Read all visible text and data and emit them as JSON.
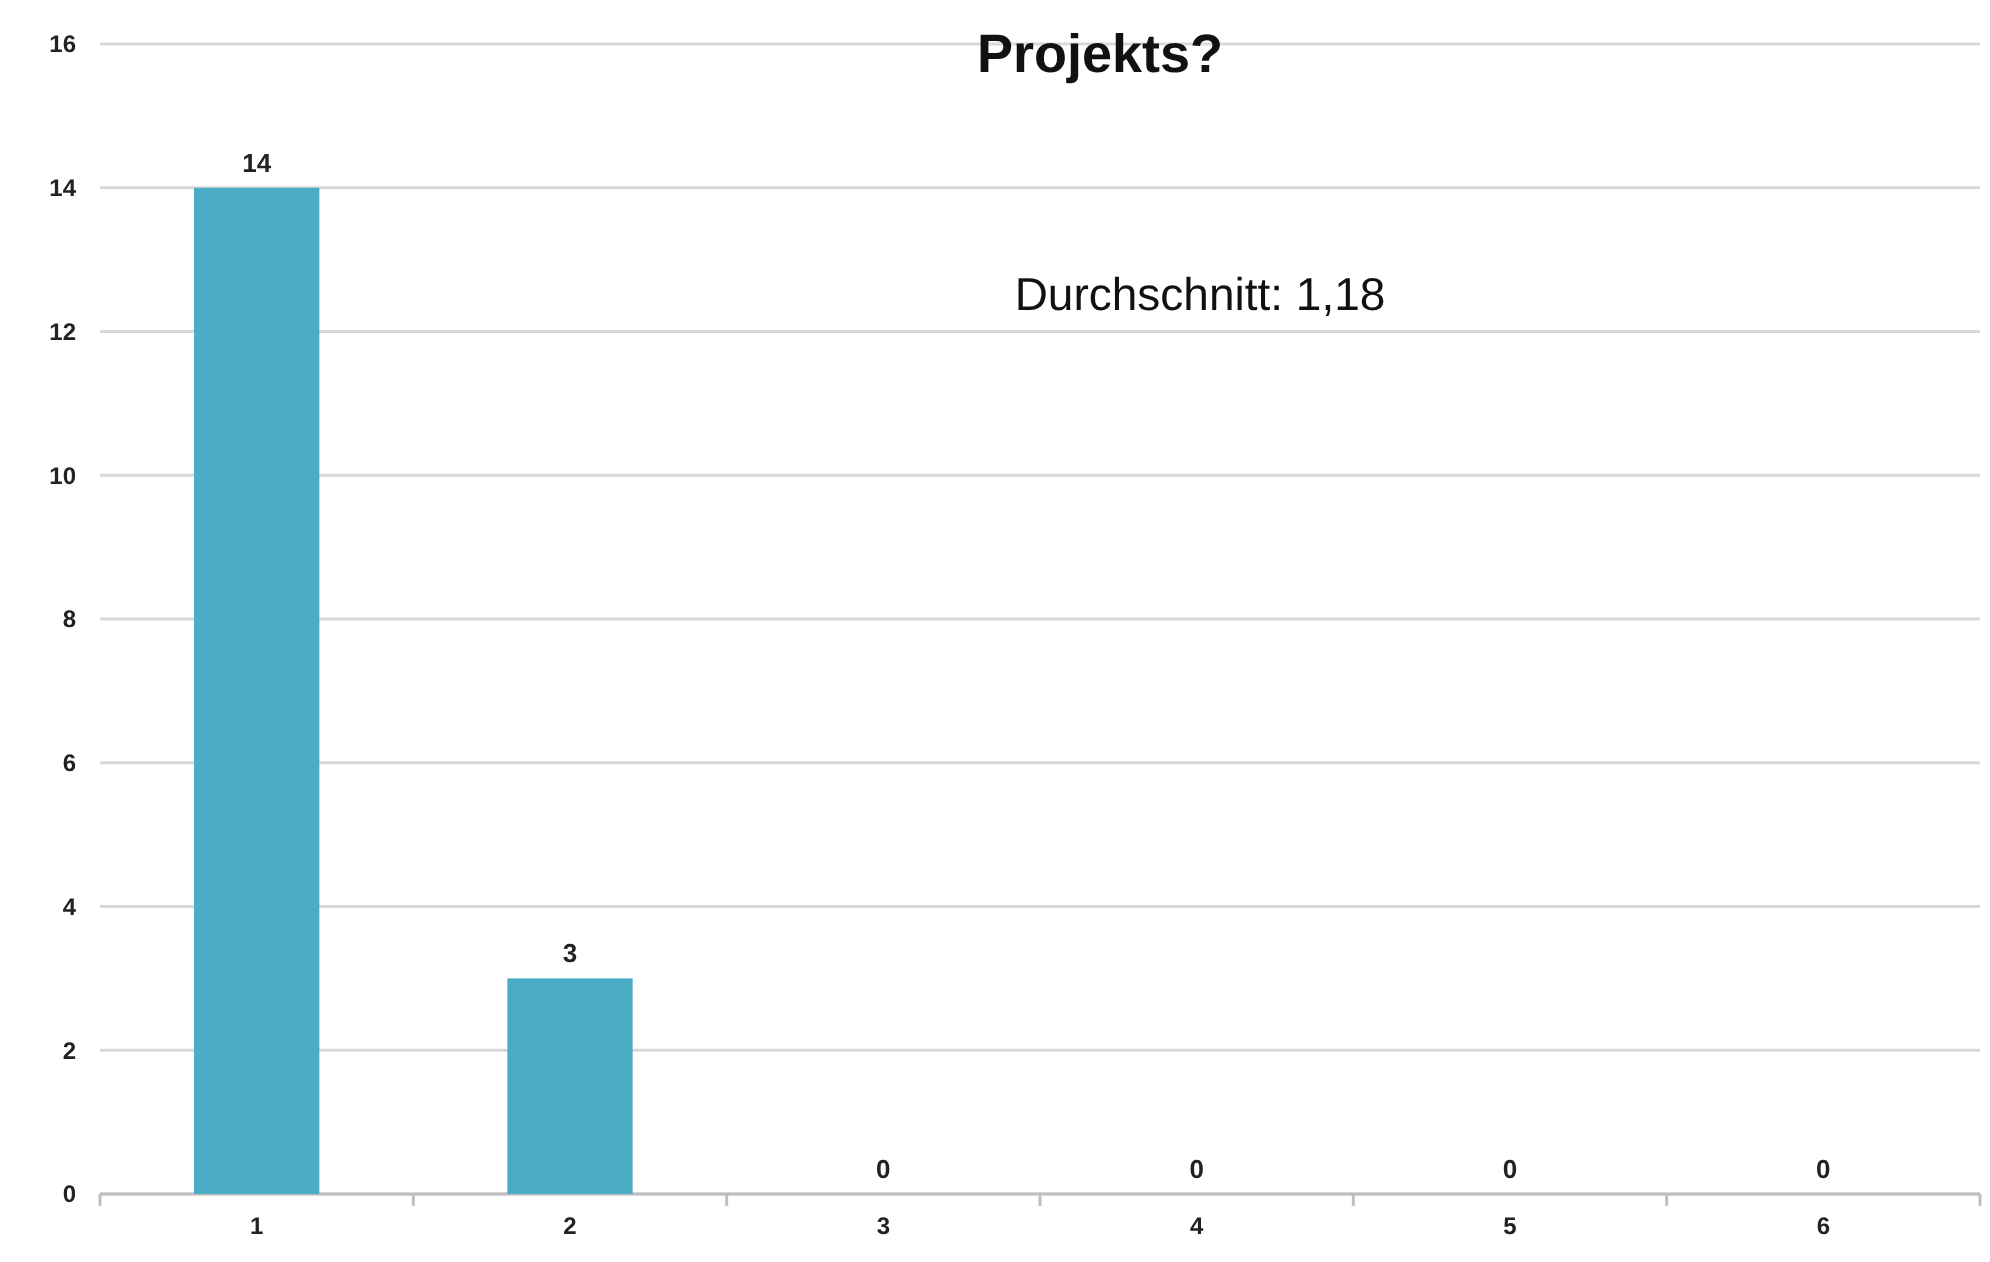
{
  "chart_data": {
    "type": "bar",
    "title": "Projekts?",
    "categories": [
      "1",
      "2",
      "3",
      "4",
      "5",
      "6"
    ],
    "values": [
      14,
      3,
      0,
      0,
      0,
      0
    ],
    "color": "#4bacc6",
    "ylim": [
      0,
      16
    ],
    "yticks": [
      0,
      2,
      4,
      6,
      8,
      10,
      12,
      14,
      16
    ],
    "grid": "y",
    "data_labels": true,
    "annotations": [
      "Durchschnitt: 1,18"
    ]
  }
}
